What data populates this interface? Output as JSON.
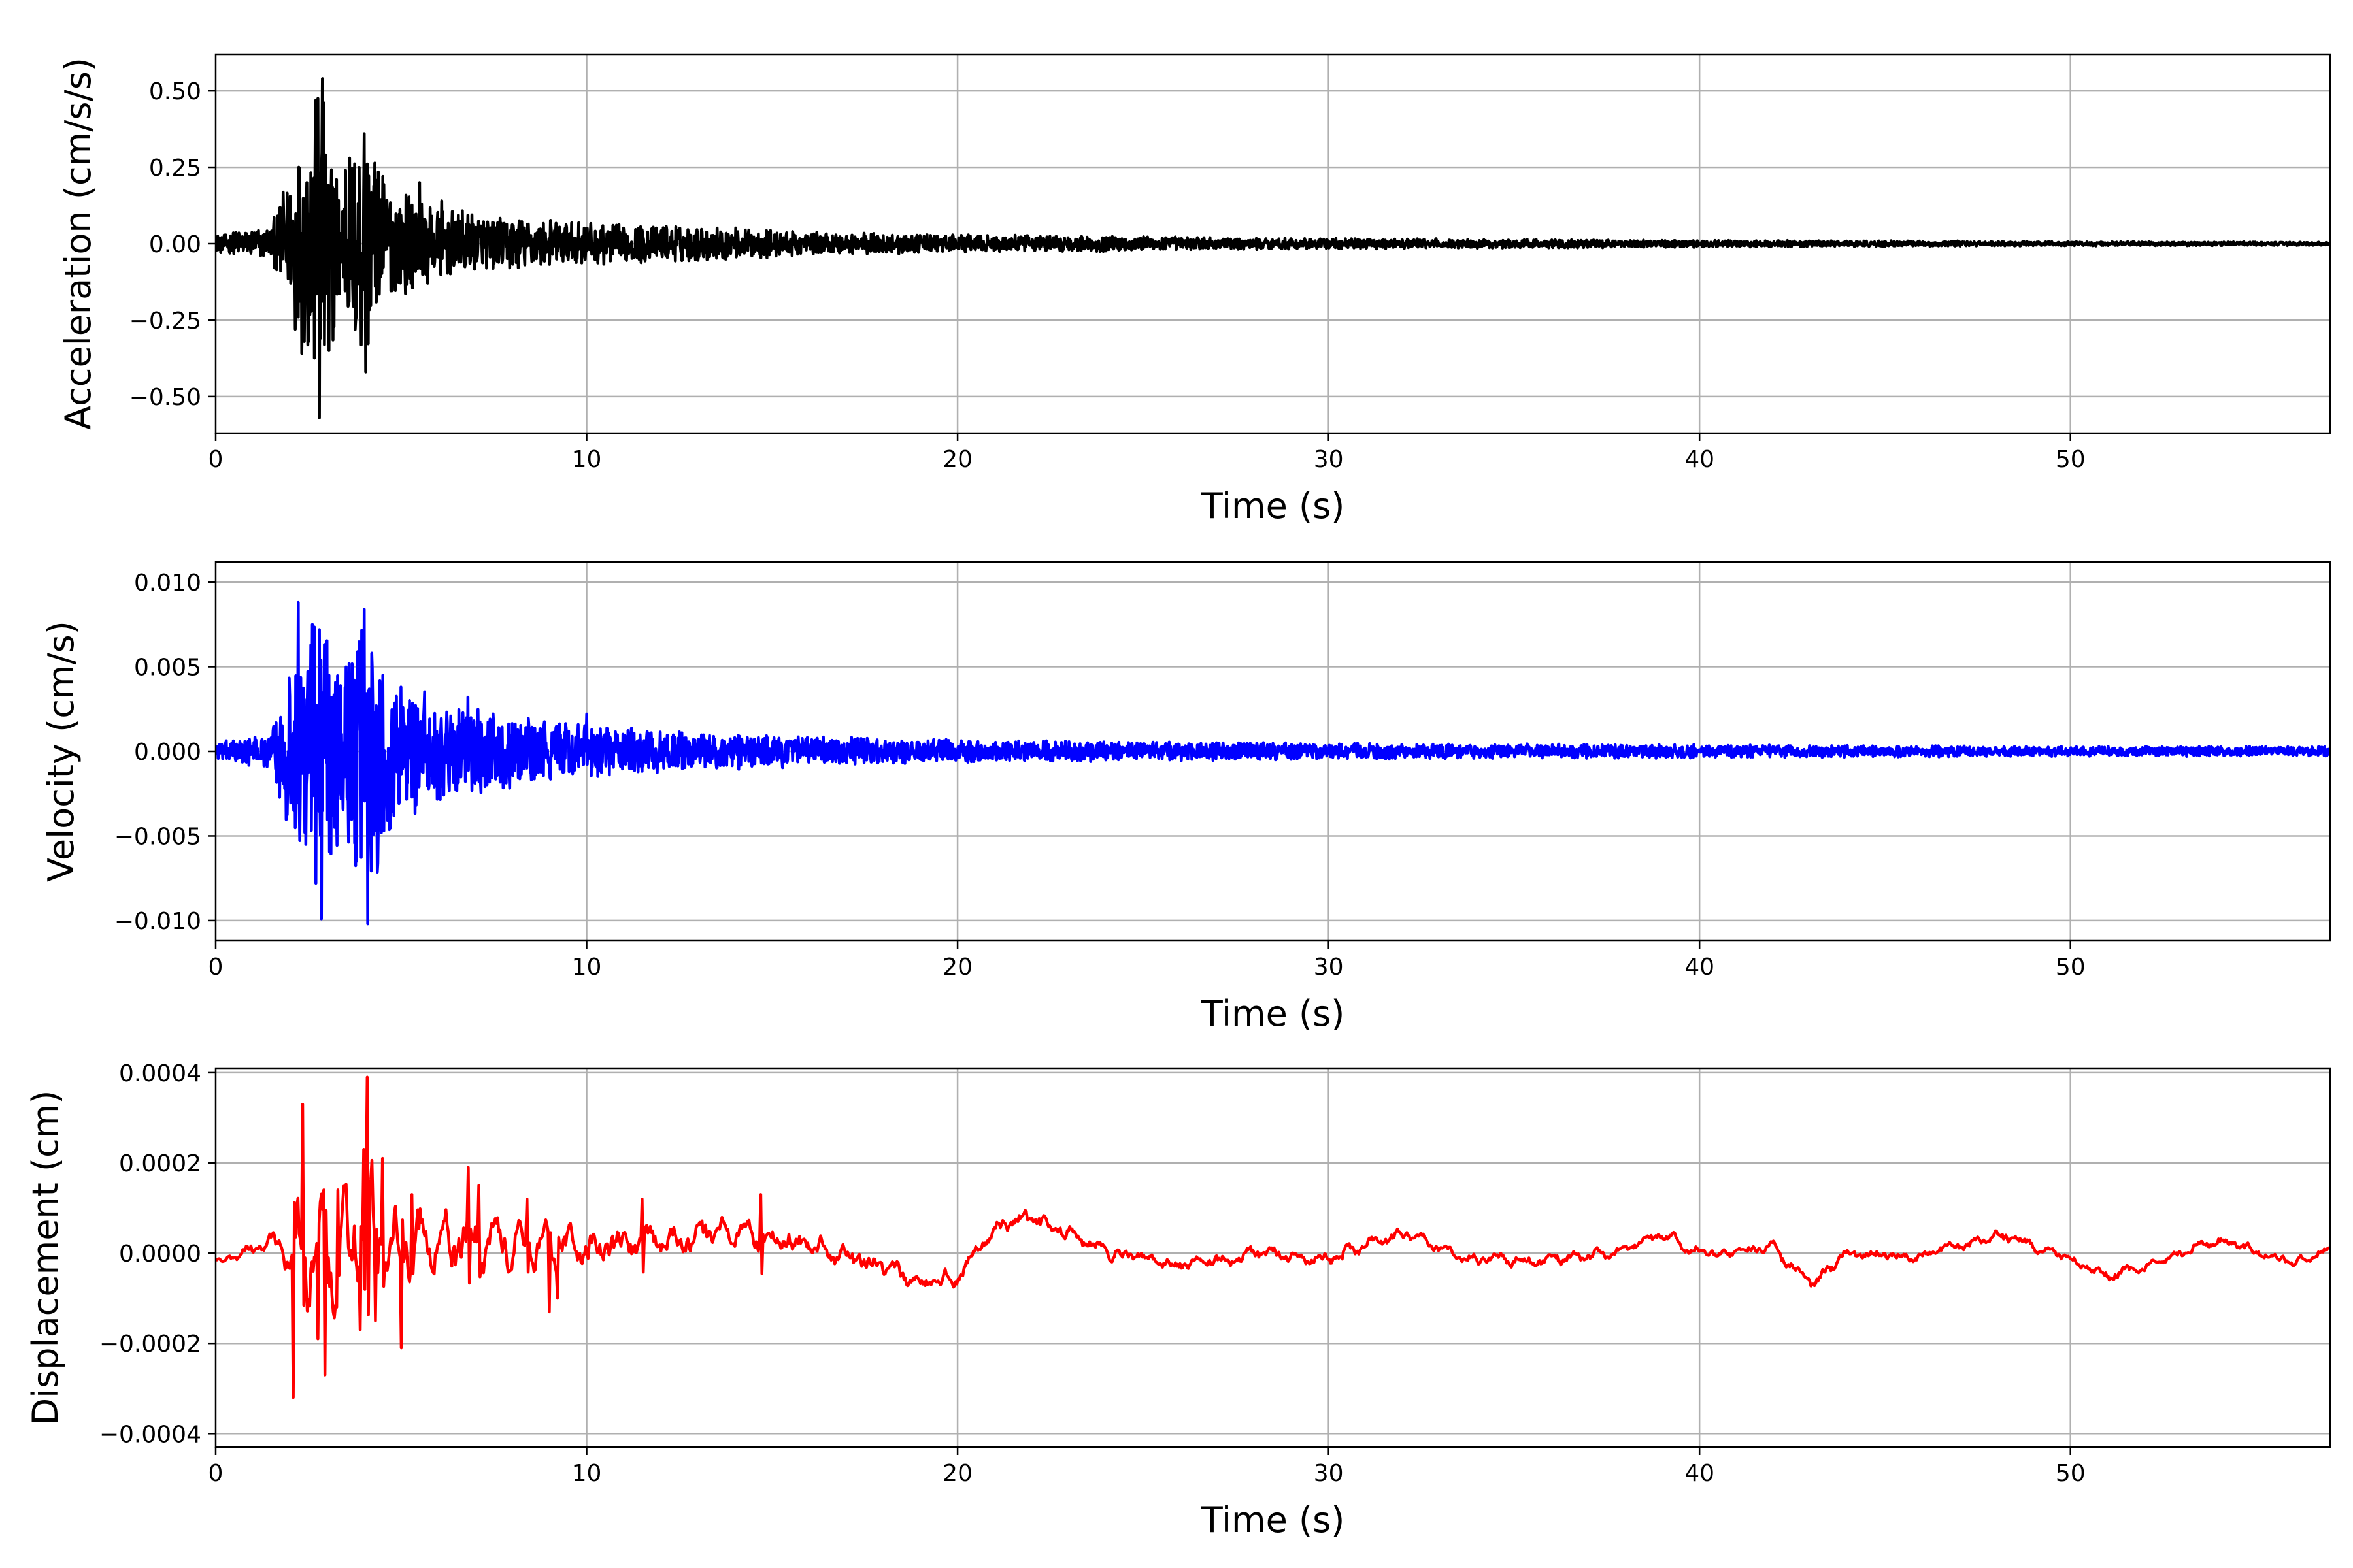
{
  "chart_data": [
    {
      "type": "line",
      "name": "acceleration",
      "xlabel": "Time (s)",
      "ylabel": "Acceleration (cm/s/s)",
      "xlim": [
        0,
        57
      ],
      "ylim": [
        -0.62,
        0.62
      ],
      "xticks": [
        0,
        10,
        20,
        30,
        40,
        50
      ],
      "xtick_labels": [
        "0",
        "10",
        "20",
        "30",
        "40",
        "50"
      ],
      "yticks": [
        -0.5,
        -0.25,
        0.0,
        0.25,
        0.5
      ],
      "ytick_labels": [
        "−0.50",
        "−0.25",
        "0.00",
        "0.25",
        "0.50"
      ],
      "grid": true,
      "color": "#000000",
      "envelope": [
        [
          0,
          0.03
        ],
        [
          1.5,
          0.06
        ],
        [
          2.1,
          0.28
        ],
        [
          2.8,
          0.57
        ],
        [
          3.3,
          0.25
        ],
        [
          4.0,
          0.42
        ],
        [
          4.6,
          0.2
        ],
        [
          6,
          0.12
        ],
        [
          8,
          0.09
        ],
        [
          10,
          0.07
        ],
        [
          13,
          0.06
        ],
        [
          16,
          0.04
        ],
        [
          20,
          0.03
        ],
        [
          25,
          0.025
        ],
        [
          30,
          0.018
        ],
        [
          40,
          0.012
        ],
        [
          50,
          0.008
        ],
        [
          57,
          0.006
        ]
      ],
      "peaks": [
        [
          2.15,
          -0.28
        ],
        [
          2.45,
          0.2
        ],
        [
          2.7,
          0.47
        ],
        [
          2.8,
          -0.57
        ],
        [
          2.88,
          0.54
        ],
        [
          3.05,
          -0.35
        ],
        [
          3.5,
          0.24
        ],
        [
          4.0,
          0.36
        ],
        [
          4.05,
          -0.42
        ],
        [
          4.5,
          0.22
        ],
        [
          5.5,
          0.2
        ],
        [
          6.1,
          0.14
        ]
      ]
    },
    {
      "type": "line",
      "name": "velocity",
      "xlabel": "Time (s)",
      "ylabel": "Velocity (cm/s)",
      "xlim": [
        0,
        57
      ],
      "ylim": [
        -0.0112,
        0.0112
      ],
      "xticks": [
        0,
        10,
        20,
        30,
        40,
        50
      ],
      "xtick_labels": [
        "0",
        "10",
        "20",
        "30",
        "40",
        "50"
      ],
      "yticks": [
        -0.01,
        -0.005,
        0.0,
        0.005,
        0.01
      ],
      "ytick_labels": [
        "−0.010",
        "−0.005",
        "0.000",
        "0.005",
        "0.010"
      ],
      "grid": true,
      "color": "#0000ff",
      "envelope": [
        [
          0,
          0.0006
        ],
        [
          1.5,
          0.001
        ],
        [
          2.1,
          0.006
        ],
        [
          2.8,
          0.009
        ],
        [
          3.4,
          0.005
        ],
        [
          4.1,
          0.009
        ],
        [
          4.7,
          0.005
        ],
        [
          6,
          0.003
        ],
        [
          8,
          0.0022
        ],
        [
          10,
          0.0016
        ],
        [
          13,
          0.0012
        ],
        [
          16,
          0.0009
        ],
        [
          20,
          0.0007
        ],
        [
          25,
          0.0006
        ],
        [
          30,
          0.0005
        ],
        [
          40,
          0.0004
        ],
        [
          50,
          0.0003
        ],
        [
          57,
          0.0003
        ]
      ],
      "peaks": [
        [
          2.1,
          -0.0035
        ],
        [
          2.22,
          0.0088
        ],
        [
          2.4,
          -0.0048
        ],
        [
          2.6,
          0.0075
        ],
        [
          2.7,
          -0.0078
        ],
        [
          2.8,
          0.0072
        ],
        [
          2.85,
          -0.0099
        ],
        [
          3.2,
          -0.0045
        ],
        [
          3.6,
          0.0052
        ],
        [
          3.8,
          -0.0065
        ],
        [
          4.0,
          0.0084
        ],
        [
          4.1,
          -0.0102
        ],
        [
          4.5,
          0.0045
        ],
        [
          5.0,
          0.0038
        ],
        [
          6.8,
          0.0032
        ],
        [
          10.0,
          0.0022
        ]
      ]
    },
    {
      "type": "line",
      "name": "displacement",
      "xlabel": "Time (s)",
      "ylabel": "Displacement (cm)",
      "xlim": [
        0,
        57
      ],
      "ylim": [
        -0.00043,
        0.00041
      ],
      "xticks": [
        0,
        10,
        20,
        30,
        40,
        50
      ],
      "xtick_labels": [
        "0",
        "10",
        "20",
        "30",
        "40",
        "50"
      ],
      "yticks": [
        -0.0004,
        -0.0002,
        0.0,
        0.0002,
        0.0004
      ],
      "ytick_labels": [
        "−0.0004",
        "−0.0002",
        "0.0000",
        "0.0002",
        "0.0004"
      ],
      "grid": true,
      "color": "#ff0000",
      "baseline": [
        [
          0,
          -2e-05
        ],
        [
          1.5,
          3e-05
        ],
        [
          2,
          0.0
        ],
        [
          4,
          1e-05
        ],
        [
          6,
          3e-05
        ],
        [
          8,
          2e-05
        ],
        [
          10,
          1e-05
        ],
        [
          12,
          2e-05
        ],
        [
          14,
          5e-05
        ],
        [
          16,
          2e-05
        ],
        [
          18,
          -3e-05
        ],
        [
          19,
          -7e-05
        ],
        [
          20,
          -5e-05
        ],
        [
          21,
          6e-05
        ],
        [
          22,
          8e-05
        ],
        [
          24,
          0.0
        ],
        [
          26,
          -3e-05
        ],
        [
          28,
          0.0
        ],
        [
          30,
          -1e-05
        ],
        [
          32,
          4e-05
        ],
        [
          34,
          -1e-05
        ],
        [
          36,
          -2e-05
        ],
        [
          38,
          1e-05
        ],
        [
          39,
          4e-05
        ],
        [
          40,
          0.0
        ],
        [
          42,
          1e-05
        ],
        [
          43,
          -7e-05
        ],
        [
          44,
          0.0
        ],
        [
          46,
          -1e-05
        ],
        [
          48,
          4e-05
        ],
        [
          50,
          -1e-05
        ],
        [
          51,
          -5e-05
        ],
        [
          52,
          -3e-05
        ],
        [
          54,
          3e-05
        ],
        [
          56,
          -2e-05
        ],
        [
          57,
          1e-05
        ]
      ],
      "envelope": [
        [
          0,
          1e-05
        ],
        [
          1.8,
          2e-05
        ],
        [
          2.2,
          0.00015
        ],
        [
          3,
          0.0001
        ],
        [
          4,
          0.00015
        ],
        [
          5,
          8e-05
        ],
        [
          7,
          6e-05
        ],
        [
          10,
          4e-05
        ],
        [
          14,
          3e-05
        ],
        [
          20,
          2e-05
        ],
        [
          30,
          1.5e-05
        ],
        [
          57,
          1e-05
        ]
      ],
      "peaks": [
        [
          2.1,
          -0.00032
        ],
        [
          2.35,
          0.00033
        ],
        [
          2.75,
          -0.00019
        ],
        [
          2.9,
          0.00014
        ],
        [
          2.95,
          -0.00027
        ],
        [
          3.3,
          0.00014
        ],
        [
          3.9,
          -0.00017
        ],
        [
          4.0,
          0.00023
        ],
        [
          4.1,
          0.00039
        ],
        [
          4.3,
          -0.00015
        ],
        [
          4.5,
          0.00021
        ],
        [
          5.0,
          -0.00021
        ],
        [
          5.3,
          0.00013
        ],
        [
          6.8,
          0.00019
        ],
        [
          7.1,
          0.00015
        ],
        [
          8.4,
          0.00012
        ],
        [
          9.0,
          -0.00013
        ],
        [
          9.2,
          -0.0001
        ],
        [
          11.5,
          0.00012
        ],
        [
          14.7,
          0.00013
        ]
      ]
    }
  ]
}
